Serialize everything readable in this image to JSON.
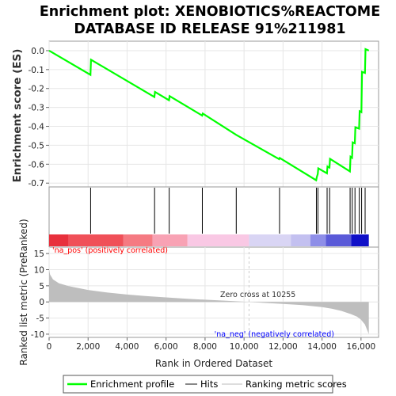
{
  "title_line1": "Enrichment plot: XENOBIOTICS%REACTOME",
  "title_line2": "DATABASE ID RELEASE 91%211981",
  "colors": {
    "es_line": "#00ff00",
    "hits": "#000000",
    "metric_fill": "#bebebe",
    "pos_text": "#ff0000",
    "neg_text": "#0000ff",
    "zero_cross": "#cccccc"
  },
  "chart_data": [
    {
      "type": "line",
      "panel": "enrichment-score",
      "ylabel": "Enrichment score (ES)",
      "ylim": [
        -0.72,
        0.05
      ],
      "yticks": [
        0.0,
        -0.1,
        -0.2,
        -0.3,
        -0.4,
        -0.5,
        -0.6,
        -0.7
      ],
      "ytick_labels": [
        "0.0",
        "-0.1",
        "-0.2",
        "-0.3",
        "-0.4",
        "-0.5",
        "-0.6",
        "-0.7"
      ],
      "xlim": [
        0,
        16900
      ],
      "grid": true,
      "series": [
        {
          "name": "Enrichment profile",
          "x": [
            0,
            2120,
            2150,
            5400,
            5430,
            6150,
            6180,
            7850,
            7880,
            9600,
            11800,
            11830,
            13700,
            13730,
            13780,
            13810,
            14250,
            14280,
            14380,
            14410,
            15430,
            15460,
            15540,
            15570,
            15680,
            15710,
            15900,
            15930,
            16020,
            16050,
            16200,
            16230,
            16400
          ],
          "y": [
            0.0,
            -0.128,
            -0.048,
            -0.245,
            -0.218,
            -0.262,
            -0.24,
            -0.343,
            -0.332,
            -0.445,
            -0.573,
            -0.567,
            -0.685,
            -0.668,
            -0.652,
            -0.622,
            -0.648,
            -0.612,
            -0.618,
            -0.572,
            -0.638,
            -0.56,
            -0.566,
            -0.485,
            -0.49,
            -0.405,
            -0.412,
            -0.32,
            -0.325,
            -0.112,
            -0.118,
            0.008,
            0.0
          ]
        }
      ]
    },
    {
      "type": "scatter",
      "panel": "hits",
      "series": [
        {
          "name": "Hits",
          "x": [
            2130,
            5410,
            6160,
            7860,
            9600,
            11820,
            13710,
            13790,
            14260,
            14390,
            15440,
            15550,
            15690,
            15910,
            16030,
            16210
          ]
        }
      ]
    },
    {
      "type": "area",
      "panel": "ranked-list-metric",
      "ylabel": "Ranked list metric (PreRanked)",
      "xlabel": "Rank in Ordered Dataset",
      "ylim": [
        -11,
        17
      ],
      "yticks": [
        15,
        10,
        5,
        0,
        -5,
        -10
      ],
      "ytick_labels": [
        "15",
        "10",
        "5",
        "0",
        "-5",
        "-10"
      ],
      "xticks": [
        0,
        2000,
        4000,
        6000,
        8000,
        10000,
        12000,
        14000,
        16000
      ],
      "xtick_labels": [
        "0",
        "2,000",
        "4,000",
        "6,000",
        "8,000",
        "10,000",
        "12,000",
        "14,000",
        "16,000"
      ],
      "xlim": [
        0,
        16900
      ],
      "grid": true,
      "series": [
        {
          "name": "Ranking metric scores",
          "x": [
            0,
            50,
            200,
            500,
            1000,
            2000,
            3000,
            4000,
            5000,
            6000,
            7000,
            8000,
            9000,
            10255,
            11000,
            12000,
            13000,
            14000,
            14500,
            15000,
            15500,
            15800,
            16000,
            16200,
            16300,
            16400
          ],
          "y": [
            10.0,
            8.5,
            7.0,
            5.8,
            4.9,
            3.7,
            2.9,
            2.3,
            1.8,
            1.4,
            1.0,
            0.7,
            0.4,
            0.0,
            -0.3,
            -0.6,
            -1.0,
            -1.6,
            -2.1,
            -2.8,
            -3.8,
            -4.6,
            -5.5,
            -7.0,
            -8.5,
            -10.0
          ]
        }
      ],
      "annotations": {
        "pos_label": "'na_pos' (positively correlated)",
        "neg_label": "'na_neg' (negatively correlated)",
        "zero_cross_label": "Zero cross at 10255",
        "zero_cross_x": 10255
      }
    }
  ],
  "legend": {
    "items": [
      "Enrichment profile",
      "Hits",
      "Ranking metric scores"
    ]
  }
}
